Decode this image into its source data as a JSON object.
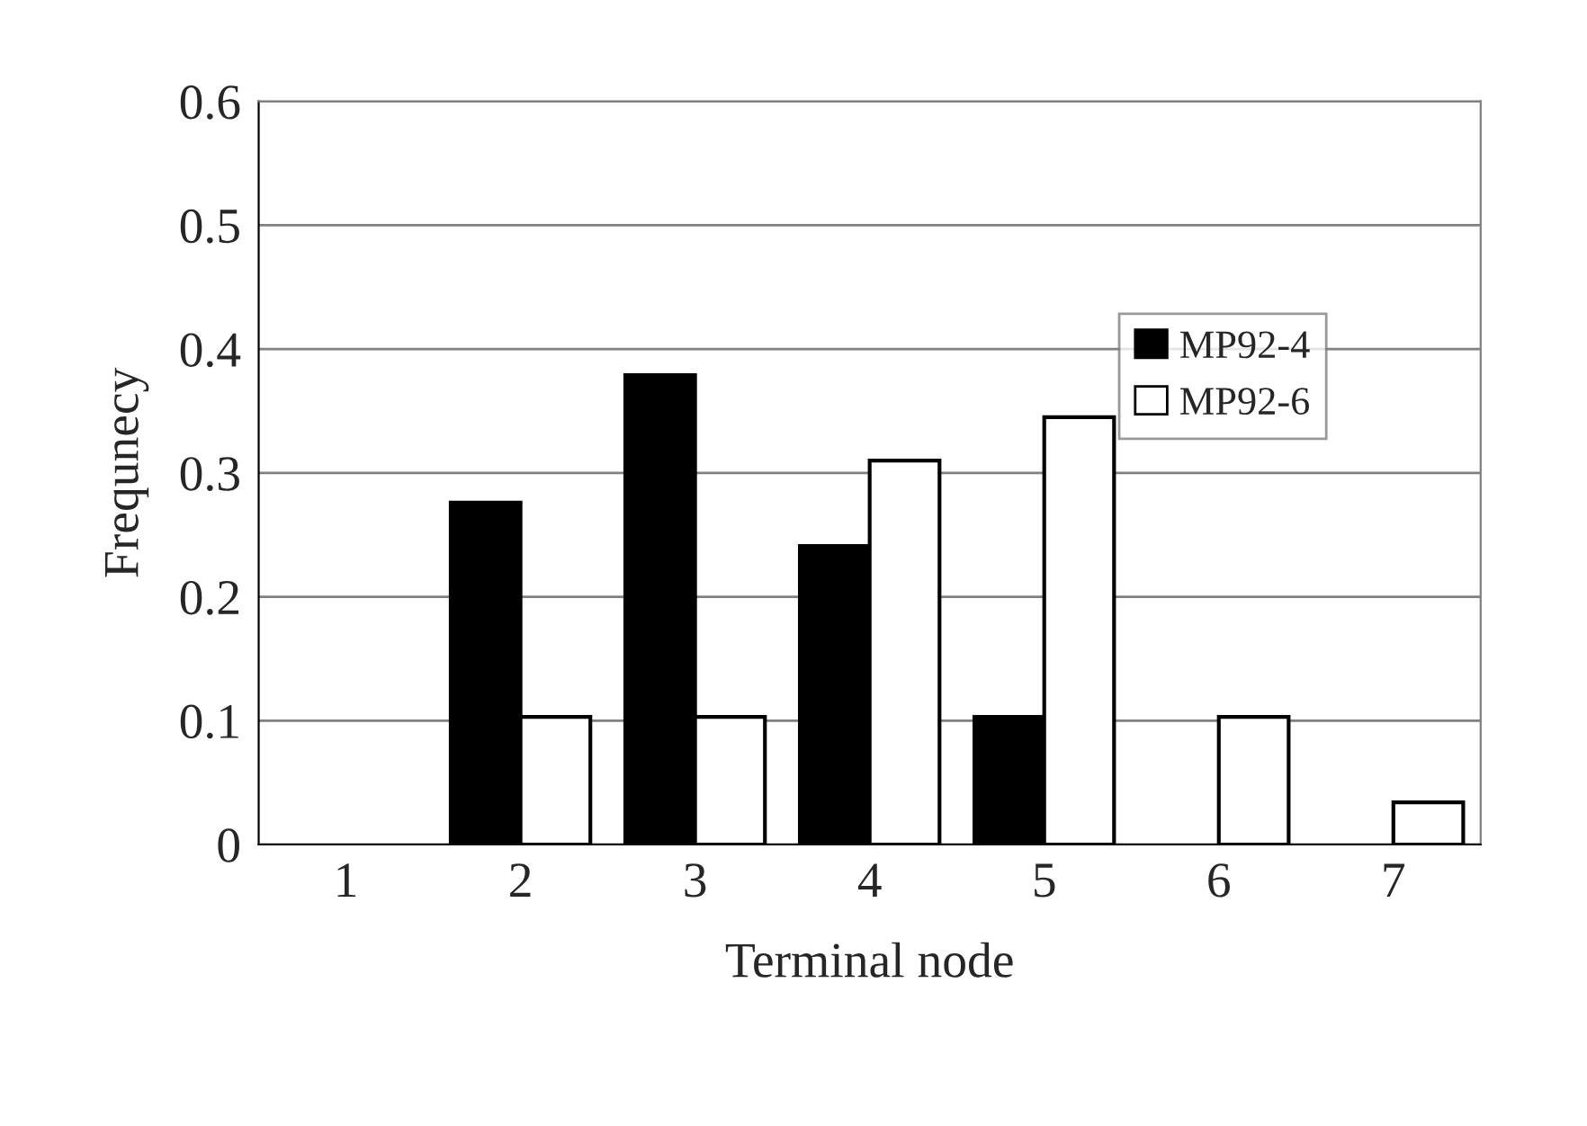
{
  "chart_data": {
    "type": "bar",
    "xlabel": "Terminal node",
    "ylabel": "Frequnecy",
    "categories": [
      "1",
      "2",
      "3",
      "4",
      "5",
      "6",
      "7"
    ],
    "series": [
      {
        "name": "MP92-4",
        "color": "#000000",
        "values": [
          0,
          0.276,
          0.379,
          0.241,
          0.103,
          0,
          0
        ]
      },
      {
        "name": "MP92-6",
        "color": "#ffffff",
        "values": [
          0,
          0.103,
          0.103,
          0.31,
          0.345,
          0.103,
          0.034
        ]
      }
    ],
    "ylim": [
      0,
      0.6
    ],
    "yticks": [
      0,
      0.1,
      0.2,
      0.3,
      0.4,
      0.5,
      0.6
    ],
    "grid": "y",
    "legend": "right"
  }
}
